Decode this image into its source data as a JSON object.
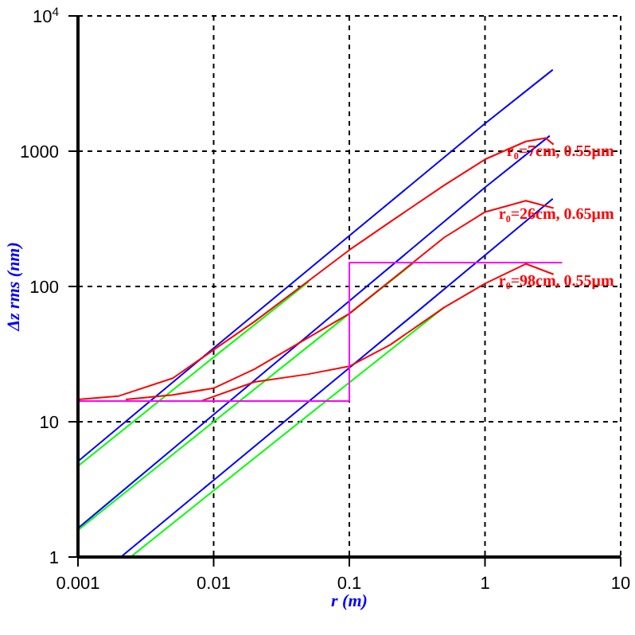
{
  "chart_data": {
    "type": "line",
    "xlabel": "r (m)",
    "ylabel": "Δz rms (nm)",
    "log": "xy",
    "xlim": [
      0.001,
      10
    ],
    "ylim": [
      1,
      10000
    ],
    "xticks": [
      0.001,
      0.01,
      0.1,
      1,
      10
    ],
    "yticks": [
      1,
      10,
      100,
      1000,
      {
        "value": 10000,
        "label": "10$^{4}$"
      }
    ],
    "grid": true,
    "marker": "none",
    "line_style": "solid",
    "series": [
      {
        "color": "#0000ff",
        "x": [
          0.001,
          0.01,
          0.1,
          1,
          3.16
        ],
        "values": [
          5.1,
          35,
          237,
          1600,
          4000
        ]
      },
      {
        "color": "#0000ff",
        "x": [
          0.001,
          0.01,
          0.1,
          1,
          3
        ],
        "values": [
          1.63,
          11.3,
          78,
          540,
          1300
        ]
      },
      {
        "color": "#0000ff",
        "x": [
          0.00207,
          0.01,
          0.1,
          1,
          3.16
        ],
        "values": [
          1,
          3.7,
          25,
          170,
          445
        ]
      },
      {
        "color": "#00ff00",
        "x": [
          0.001,
          0.01,
          0.05
        ],
        "values": [
          4.7,
          30,
          108
        ]
      },
      {
        "color": "#00ff00",
        "x": [
          0.001,
          0.01,
          0.1,
          0.3
        ],
        "values": [
          1.58,
          10,
          63,
          150
        ]
      },
      {
        "color": "#00ff00",
        "x": [
          0.00244,
          0.01,
          0.1,
          0.5
        ],
        "values": [
          1,
          3.1,
          19.5,
          70
        ]
      },
      {
        "name": "r₀=7cm, 0.55μm",
        "color": "#ff0000",
        "x": [
          0.001,
          0.002,
          0.005,
          0.01,
          0.02,
          0.05,
          0.1,
          0.2,
          0.5,
          1,
          2,
          2.8,
          3.2
        ],
        "values": [
          14.6,
          15.5,
          21,
          34,
          55,
          110,
          186,
          300,
          560,
          870,
          1180,
          1250,
          1120
        ]
      },
      {
        "name": "r₀=26cm, 0.65μm",
        "color": "#ff0000",
        "x": [
          0.00225,
          0.005,
          0.01,
          0.02,
          0.05,
          0.1,
          0.2,
          0.5,
          1,
          2,
          3.2
        ],
        "values": [
          14.6,
          15.8,
          17.7,
          24.5,
          42,
          63,
          110,
          230,
          355,
          430,
          380
        ]
      },
      {
        "name": "r₀=98cm, 0.55μm",
        "color": "#ff0000",
        "x": [
          0.0082,
          0.02,
          0.05,
          0.1,
          0.2,
          0.5,
          1,
          2,
          3.2
        ],
        "values": [
          14.3,
          19.7,
          22.5,
          25.7,
          37,
          70,
          105,
          147,
          123
        ]
      },
      {
        "color": "#ff00ff",
        "x": [
          0.001,
          0.1,
          0.1,
          3.7
        ],
        "values": [
          14.2,
          14.2,
          150,
          150
        ]
      }
    ]
  }
}
